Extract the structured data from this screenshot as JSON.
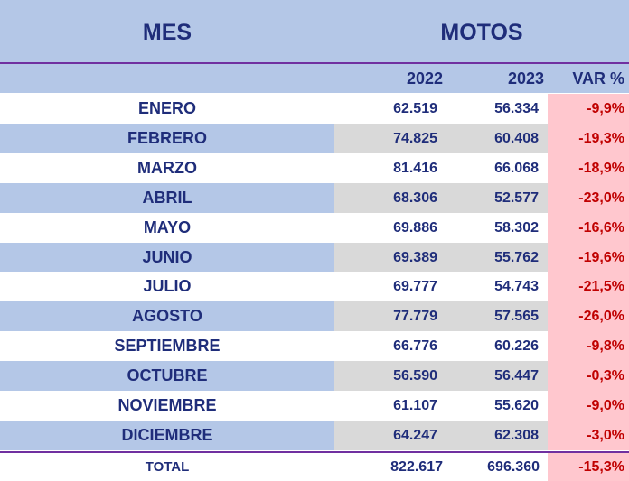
{
  "header": {
    "mes_label": "MES",
    "motos_label": "MOTOS",
    "year_a": "2022",
    "year_b": "2023",
    "var_label": "VAR %"
  },
  "rows": [
    {
      "mes": "ENERO",
      "y2022": "62.519",
      "y2023": "56.334",
      "var": "-9,9%"
    },
    {
      "mes": "FEBRERO",
      "y2022": "74.825",
      "y2023": "60.408",
      "var": "-19,3%"
    },
    {
      "mes": "MARZO",
      "y2022": "81.416",
      "y2023": "66.068",
      "var": "-18,9%"
    },
    {
      "mes": "ABRIL",
      "y2022": "68.306",
      "y2023": "52.577",
      "var": "-23,0%"
    },
    {
      "mes": "MAYO",
      "y2022": "69.886",
      "y2023": "58.302",
      "var": "-16,6%"
    },
    {
      "mes": "JUNIO",
      "y2022": "69.389",
      "y2023": "55.762",
      "var": "-19,6%"
    },
    {
      "mes": "JULIO",
      "y2022": "69.777",
      "y2023": "54.743",
      "var": "-21,5%"
    },
    {
      "mes": "AGOSTO",
      "y2022": "77.779",
      "y2023": "57.565",
      "var": "-26,0%"
    },
    {
      "mes": "SEPTIEMBRE",
      "y2022": "66.776",
      "y2023": "60.226",
      "var": "-9,8%"
    },
    {
      "mes": "OCTUBRE",
      "y2022": "56.590",
      "y2023": "56.447",
      "var": "-0,3%"
    },
    {
      "mes": "NOVIEMBRE",
      "y2022": "61.107",
      "y2023": "55.620",
      "var": "-9,0%"
    },
    {
      "mes": "DICIEMBRE",
      "y2022": "64.247",
      "y2023": "62.308",
      "var": "-3,0%"
    }
  ],
  "total": {
    "label": "TOTAL",
    "y2022": "822.617",
    "y2023": "696.360",
    "var": "-15,3%"
  },
  "colors": {
    "header_bg": "#b4c7e7",
    "text_navy": "#1f2d7a",
    "divider_purple": "#7030a0",
    "num_alt_bg": "#d9d9d9",
    "var_bg": "#ffc7ce",
    "var_text": "#c00000"
  }
}
